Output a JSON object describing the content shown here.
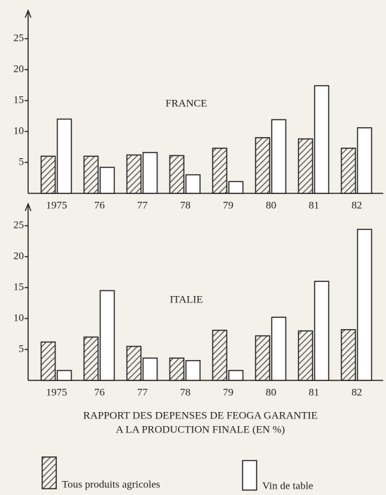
{
  "caption": [
    "RAPPORT DES DEPENSES DE FEOGA GARANTIE",
    "A LA PRODUCTION FINALE (EN %)"
  ],
  "chart_data": [
    {
      "type": "bar",
      "title": "FRANCE",
      "categories": [
        "1975",
        "76",
        "77",
        "78",
        "79",
        "80",
        "81",
        "82"
      ],
      "series": [
        {
          "name": "Tous produits agricoles",
          "color": "#333333",
          "values": [
            6,
            6,
            6.2,
            6.1,
            7.3,
            9,
            8.8,
            7.3
          ]
        },
        {
          "name": "Vin de table",
          "color": "#ffffff",
          "values": [
            12,
            4.2,
            6.6,
            3,
            1.9,
            11.9,
            17.4,
            10.6
          ]
        }
      ],
      "ylim": [
        0,
        27
      ],
      "yticks": [
        5,
        10,
        15,
        20,
        25
      ]
    },
    {
      "type": "bar",
      "title": "ITALIE",
      "categories": [
        "1975",
        "76",
        "77",
        "78",
        "79",
        "80",
        "81",
        "82"
      ],
      "series": [
        {
          "color": "#333333",
          "values": [
            6.2,
            7,
            5.5,
            3.6,
            8.1,
            7.2,
            8,
            8.2
          ]
        },
        {
          "color": "#ffffff",
          "values": [
            1.6,
            14.5,
            3.6,
            3.2,
            1.6,
            10.2,
            16,
            24.4
          ]
        }
      ],
      "ylim": [
        0,
        28
      ],
      "yticks": [
        5,
        10,
        15,
        20,
        25
      ]
    }
  ]
}
